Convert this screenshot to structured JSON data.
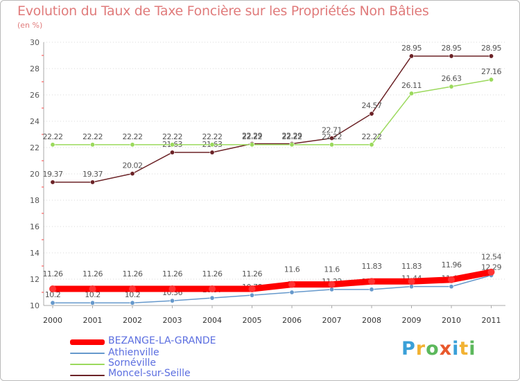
{
  "chart_data": {
    "type": "line",
    "title": "Evolution du Taux de Taxe Foncière sur les Propriétés Non Bâties",
    "ylabel": "(en %)",
    "xlabel": "",
    "ylim": [
      10,
      30
    ],
    "yticks": [
      "10",
      "12",
      "14",
      "16",
      "18",
      "20",
      "22",
      "24",
      "26",
      "28",
      "30"
    ],
    "categories": [
      "2000",
      "2001",
      "2002",
      "2003",
      "2004",
      "2005",
      "2006",
      "2007",
      "2008",
      "2009",
      "2010",
      "2011"
    ],
    "series": [
      {
        "name": "Moncel-sur-Seille",
        "color": "#6b2226",
        "values": [
          19.37,
          19.37,
          20.02,
          21.63,
          21.63,
          22.29,
          22.29,
          22.71,
          24.57,
          28.95,
          28.95,
          28.95
        ],
        "labels": [
          "19.37",
          "19.37",
          "20.02",
          "21.63",
          "21.63",
          "22.29",
          "22.29",
          "22.71",
          "24.57",
          "28.95",
          "28.95",
          "28.95"
        ]
      },
      {
        "name": "Sornéville",
        "color": "#9bd95c",
        "values": [
          22.22,
          22.22,
          22.22,
          22.22,
          22.22,
          22.22,
          22.22,
          22.22,
          22.22,
          26.11,
          26.63,
          27.16
        ],
        "labels": [
          "22.22",
          "22.22",
          "22.22",
          "22.22",
          "22.22",
          "22.22",
          "22.22",
          "22.22",
          "22.22",
          "26.11",
          "26.63",
          "27.16"
        ]
      },
      {
        "name": "Athienville",
        "color": "#6699cc",
        "values": [
          10.2,
          10.2,
          10.2,
          10.36,
          10.57,
          10.78,
          11.0,
          11.22,
          11.22,
          11.44,
          11.44,
          12.29
        ],
        "labels": [
          "10.2",
          "10.2",
          "10.2",
          "10.36",
          "10.57",
          "10.78",
          "11",
          "11.22",
          "11.22",
          "11.44",
          "11.44",
          "12.29"
        ]
      },
      {
        "name": "BEZANGE-LA-GRANDE",
        "color": "#ff0000",
        "values": [
          11.26,
          11.26,
          11.26,
          11.26,
          11.26,
          11.26,
          11.6,
          11.6,
          11.83,
          11.83,
          11.96,
          12.54
        ],
        "labels": [
          "11.26",
          "11.26",
          "11.26",
          "11.26",
          "11.26",
          "11.26",
          "11.6",
          "11.6",
          "11.83",
          "11.83",
          "11.96",
          "12.54"
        ]
      }
    ],
    "legend": [
      "BEZANGE-LA-GRANDE",
      "Athienville",
      "Sornéville",
      "Moncel-sur-Seille"
    ]
  },
  "brand": {
    "letters": [
      "P",
      "r",
      "o",
      "x",
      "i",
      "t",
      "i"
    ],
    "colors": [
      "#3aa0d8",
      "#f2b233",
      "#5cb85c",
      "#e8582c",
      "#3aa0d8",
      "#f2b233",
      "#5cb85c"
    ]
  }
}
